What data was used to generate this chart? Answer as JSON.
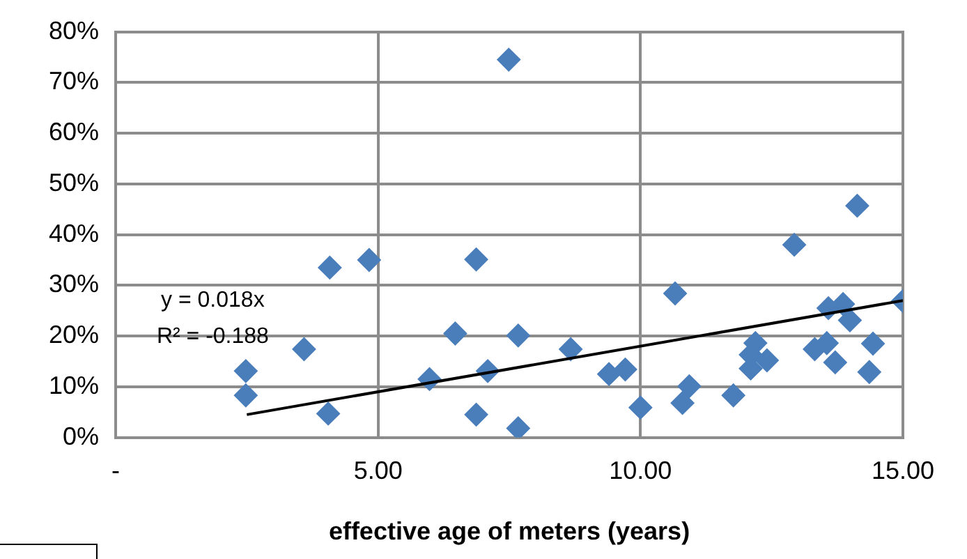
{
  "chart_data": {
    "type": "scatter",
    "xlabel": "effective age of meters (years)",
    "xlim": [
      0,
      15
    ],
    "xticks": [
      {
        "value": 0,
        "label": "-"
      },
      {
        "value": 5,
        "label": "5.00"
      },
      {
        "value": 10,
        "label": "10.00"
      },
      {
        "value": 15,
        "label": "15.00"
      }
    ],
    "ylim": [
      0,
      80
    ],
    "yticks": [
      {
        "value": 0,
        "label": "0%"
      },
      {
        "value": 10,
        "label": "10%"
      },
      {
        "value": 20,
        "label": "20%"
      },
      {
        "value": 30,
        "label": "30%"
      },
      {
        "value": 40,
        "label": "40%"
      },
      {
        "value": 50,
        "label": "50%"
      },
      {
        "value": 60,
        "label": "60%"
      },
      {
        "value": 70,
        "label": "70%"
      },
      {
        "value": 80,
        "label": "80%"
      }
    ],
    "grid": true,
    "legend": false,
    "marker": "diamond",
    "annotations": [
      "y = 0.018x",
      "R² = -0.188"
    ],
    "series": [
      {
        "color": "#4a7ebb",
        "x": [
          2.48,
          2.48,
          3.59,
          4.08,
          4.05,
          4.83,
          6.87,
          6.47,
          5.98,
          7.09,
          6.87,
          7.67,
          7.67,
          7.49,
          8.67,
          9.4,
          9.71,
          10.0,
          10.66,
          10.8,
          10.93,
          11.77,
          12.1,
          12.19,
          12.1,
          12.41,
          12.93,
          13.32,
          13.55,
          13.58,
          13.86,
          13.99,
          13.71,
          14.13,
          14.43,
          14.36,
          15.0
        ],
        "values": [
          13.1,
          8.3,
          17.4,
          33.5,
          4.7,
          35.0,
          35.1,
          20.5,
          11.5,
          13.1,
          4.5,
          1.8,
          20.1,
          74.5,
          17.4,
          12.5,
          13.4,
          5.9,
          28.4,
          6.8,
          10.1,
          8.3,
          13.6,
          18.6,
          16.3,
          15.2,
          38.0,
          17.4,
          18.6,
          25.5,
          26.3,
          23.1,
          14.8,
          45.7,
          18.5,
          12.9,
          26.9
        ]
      },
      {
        "type": "line",
        "color": "#000000",
        "marker": "none",
        "x": [
          2.5,
          15
        ],
        "values": [
          4.5,
          27
        ]
      }
    ]
  }
}
